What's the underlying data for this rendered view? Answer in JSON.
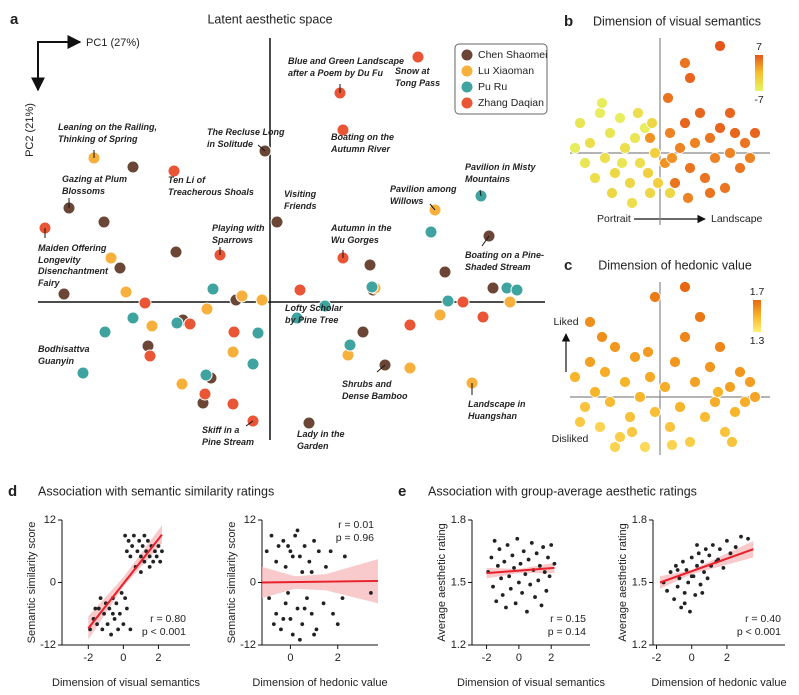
{
  "chart_data": [
    {
      "type": "scatter",
      "panel": "a",
      "title": "Latent aesthetic space",
      "xlabel": "PC1 (27%)",
      "ylabel": "PC2 (21%)",
      "xlim": [
        -250,
        275
      ],
      "ylim": [
        -150,
        275
      ],
      "legend": "upper right",
      "series": [
        {
          "name": "Chen Shaomei",
          "color": "#6b4636",
          "x": [
            -137,
            -201,
            -166,
            -150,
            -94,
            -206,
            -122,
            -59,
            -67,
            -34,
            -5,
            7,
            100,
            103,
            93,
            175,
            219,
            223,
            115,
            39,
            -87
          ],
          "y": [
            135,
            94,
            80,
            34,
            50,
            8,
            -44,
            -76,
            -101,
            2,
            151,
            80,
            37,
            12,
            -30,
            30,
            66,
            14,
            -63,
            -121,
            -18
          ],
          "labels": [
            null,
            "Gazing at Plum Blossoms",
            null,
            null,
            null,
            "Disenchantment Fairy",
            null,
            null,
            null,
            null,
            "The Recluse Long in Solitude",
            "Visiting Friends",
            null,
            null,
            null,
            null,
            "Boating on a Pine-Shaded Stream",
            null,
            "Shrubs and Dense Bamboo",
            "Lady in the Garden",
            null
          ]
        },
        {
          "name": "Lu Xiaoman",
          "color": "#f7b03c",
          "x": [
            -176,
            -159,
            -144,
            -63,
            -88,
            -37,
            -28,
            -118,
            78,
            105,
            165,
            170,
            140,
            240,
            202,
            -8
          ],
          "y": [
            144,
            44,
            10,
            -7,
            -82,
            -50,
            6,
            -24,
            -53,
            14,
            92,
            -13,
            -66,
            0,
            -81,
            2
          ],
          "labels": [
            "Leaning on the Railing, Thinking of Spring",
            null,
            null,
            null,
            null,
            null,
            null,
            null,
            null,
            null,
            "Pavilion among Willows",
            null,
            null,
            null,
            "Landscape in Huangshan",
            null
          ]
        },
        {
          "name": "Pu Ru",
          "color": "#3fa3a0",
          "x": [
            -165,
            -137,
            -187,
            -57,
            -93,
            -64,
            -17,
            -12,
            27,
            55,
            80,
            161,
            211,
            237,
            247,
            178,
            102
          ],
          "y": [
            -30,
            -16,
            -71,
            13,
            -21,
            -73,
            -62,
            -31,
            -16,
            -4,
            -43,
            70,
            106,
            14,
            12,
            1,
            15
          ],
          "labels": [
            null,
            null,
            "Bodhisattva Guanyin",
            null,
            null,
            null,
            null,
            null,
            "Lofty Scholar by Pine Tree",
            null,
            null,
            null,
            "Pavilion in Misty Mountains",
            null,
            null,
            null,
            null
          ]
        },
        {
          "name": "Zhang Daqian",
          "color": "#ea5536",
          "x": [
            148,
            70,
            73,
            -96,
            -225,
            -50,
            73,
            -17,
            -125,
            -80,
            -36,
            -120,
            -65,
            -37,
            30,
            193,
            213,
            140
          ],
          "y": [
            245,
            209,
            172,
            131,
            74,
            47,
            44,
            -119,
            -1,
            -22,
            -30,
            -54,
            -92,
            -102,
            12,
            0,
            -15,
            -23
          ],
          "labels": [
            "Snow at Tong Pass",
            "Blue and Green Landscape after a Poem by Du Fu",
            "Boating on the Autumn River",
            "Ten Li of Treacherous Shoals",
            "Maiden Offering Longevity",
            "Playing with Sparrows",
            "Autumn in the Wu Gorges",
            "Skiff in a Pine Stream",
            null,
            null,
            null,
            null,
            null,
            null,
            null,
            null,
            null,
            null
          ]
        }
      ]
    },
    {
      "type": "scatter",
      "panel": "b",
      "title": "Dimension of visual semantics",
      "xlabel_left": "Portrait",
      "xlabel_right": "Landscape",
      "xlim": [
        -95,
        110
      ],
      "ylim": [
        -60,
        115
      ],
      "x": [
        -80,
        -70,
        -60,
        -55,
        -50,
        -45,
        -40,
        -35,
        -30,
        -25,
        -20,
        -15,
        -10,
        -5,
        -65,
        -75,
        -48,
        -28,
        -12,
        -38,
        -58,
        -22,
        -8,
        -85,
        -2,
        -10,
        5,
        10,
        15,
        20,
        25,
        30,
        35,
        40,
        45,
        50,
        55,
        60,
        65,
        70,
        75,
        80,
        85,
        90,
        95,
        30,
        25,
        60,
        28,
        50,
        12,
        8,
        70,
        10
      ],
      "y": [
        30,
        10,
        40,
        -5,
        20,
        -20,
        35,
        5,
        -30,
        15,
        -10,
        25,
        -40,
        0,
        -25,
        -10,
        -40,
        -50,
        -20,
        -10,
        50,
        40,
        30,
        5,
        -30,
        15,
        -10,
        20,
        -30,
        5,
        30,
        -15,
        10,
        40,
        -25,
        15,
        -5,
        25,
        -35,
        0,
        20,
        -15,
        10,
        -5,
        20,
        75,
        90,
        107,
        -45,
        -40,
        -5,
        55,
        40,
        -40
      ],
      "color_values": [
        -5,
        -4,
        -6,
        -4,
        -5,
        -3,
        -6,
        -4,
        -3,
        -5,
        -4,
        -6,
        -3,
        -2,
        -4,
        -5,
        -3,
        -4,
        -2,
        -5,
        -6,
        -4,
        -3,
        -6,
        -2,
        3,
        3,
        4,
        5,
        4,
        6,
        5,
        4,
        6,
        5,
        5,
        4,
        6,
        5,
        4,
        6,
        5,
        5,
        4,
        6,
        6,
        5,
        7,
        4,
        5,
        3,
        5,
        6,
        -3
      ],
      "colormap": [
        "#e4f565",
        "#f6c02e",
        "#e6561a"
      ],
      "clim": [
        -7,
        7
      ],
      "cticks": [
        7,
        -7
      ]
    },
    {
      "type": "scatter",
      "panel": "c",
      "title": "Dimension of hedonic value",
      "ylabel_top": "Liked",
      "ylabel_bottom": "Disliked",
      "xlim": [
        -95,
        110
      ],
      "ylim": [
        -60,
        115
      ],
      "x": [
        -85,
        -75,
        -70,
        -65,
        -60,
        -55,
        -50,
        -45,
        -40,
        -35,
        -30,
        -25,
        -20,
        -15,
        -10,
        -5,
        -80,
        -58,
        -28,
        -12,
        5,
        10,
        15,
        20,
        25,
        30,
        35,
        40,
        45,
        50,
        55,
        60,
        65,
        70,
        75,
        80,
        85,
        90,
        95,
        25,
        -70,
        -5,
        58,
        12,
        -45,
        72
      ],
      "y": [
        20,
        -10,
        35,
        5,
        -30,
        25,
        -5,
        50,
        -40,
        15,
        -20,
        40,
        0,
        -50,
        20,
        -15,
        -25,
        60,
        -35,
        45,
        10,
        -30,
        35,
        -10,
        60,
        -45,
        15,
        80,
        -20,
        30,
        -5,
        50,
        -35,
        10,
        -15,
        25,
        -5,
        15,
        0,
        110,
        75,
        100,
        5,
        -48,
        -50,
        -45
      ],
      "color_values": [
        1.5,
        1.45,
        1.55,
        1.5,
        1.4,
        1.52,
        1.48,
        1.58,
        1.42,
        1.5,
        1.46,
        1.56,
        1.5,
        1.38,
        1.53,
        1.47,
        1.43,
        1.6,
        1.44,
        1.57,
        1.52,
        1.45,
        1.58,
        1.5,
        1.62,
        1.42,
        1.55,
        1.66,
        1.48,
        1.58,
        1.52,
        1.62,
        1.45,
        1.55,
        1.5,
        1.58,
        1.52,
        1.56,
        1.54,
        1.7,
        1.6,
        1.65,
        1.5,
        1.4,
        1.4,
        1.45
      ],
      "colormap": [
        "#fff176",
        "#f7b52a",
        "#e8670f"
      ],
      "clim": [
        1.3,
        1.7
      ],
      "cticks": [
        1.7,
        1.3
      ]
    },
    {
      "type": "scatter",
      "panel": "d",
      "title": "Association with semantic similarity ratings",
      "xlabel": "Dimension of visual semantics",
      "ylabel": "Semantic similarity score",
      "xlim": [
        -3.5,
        3.8
      ],
      "ylim": [
        -12,
        12
      ],
      "xticks": [
        -2,
        0,
        2
      ],
      "yticks": [
        -12,
        0,
        12
      ],
      "color": "#222222",
      "x": [
        0.1,
        0.3,
        0.5,
        0.6,
        0.8,
        0.9,
        1.0,
        1.1,
        1.2,
        1.3,
        1.4,
        1.5,
        1.6,
        1.7,
        1.8,
        1.9,
        2.0,
        2.1,
        0.4,
        0.7,
        1.0,
        1.5,
        2.2,
        1.2,
        0.2,
        -1.9,
        -1.7,
        -1.5,
        -1.4,
        -1.2,
        -1.1,
        -1.0,
        -0.9,
        -0.8,
        -0.7,
        -0.6,
        -0.5,
        -0.4,
        -0.3,
        -0.2,
        -0.1,
        0,
        0.2,
        0.4,
        -1.3,
        -0.6,
        0.1,
        -1.6
      ],
      "y": [
        9,
        8,
        7,
        9,
        6,
        8,
        5,
        7,
        4,
        6,
        8,
        5,
        7,
        4,
        6,
        5,
        7,
        4,
        5,
        3,
        2,
        3,
        6,
        9,
        6,
        -9,
        -7,
        -8,
        -5,
        -9,
        -6,
        -4,
        -8,
        -5,
        -10,
        -3,
        -7,
        -4,
        -9,
        -6,
        -2,
        -8,
        -5,
        -9,
        -3,
        -6,
        -3,
        -5
      ],
      "fit": {
        "x": [
          -2,
          2.2
        ],
        "y": [
          -8.8,
          9.2
        ],
        "color": "#e8202a"
      },
      "ci": {
        "x": [
          -2,
          0,
          2.2
        ],
        "lower": [
          -11,
          -0.8,
          7.5
        ],
        "upper": [
          -6.5,
          1,
          11
        ],
        "color": "#f5b8bb"
      },
      "annotations": [
        "r = 0.80",
        "p < 0.001"
      ],
      "annotation_corner": "lower right"
    },
    {
      "type": "scatter",
      "xlabel": "Dimension of hedonic value",
      "ylabel": "Semantic similarity score",
      "xlim": [
        -1.2,
        3.7
      ],
      "ylim": [
        -12,
        12
      ],
      "xticks": [
        0,
        2
      ],
      "yticks": [
        -12,
        0,
        12
      ],
      "color": "#222222",
      "x": [
        -0.8,
        -0.5,
        -0.3,
        0,
        0.2,
        0.4,
        0.6,
        0.8,
        1.0,
        1.2,
        -0.6,
        -0.2,
        0.1,
        0.5,
        1.5,
        2.3,
        -1.0,
        0.3,
        0.9,
        -0.1,
        1.7,
        -0.9,
        -0.6,
        -0.4,
        -0.2,
        0,
        0.1,
        0.3,
        0.5,
        0.7,
        0.9,
        1.1,
        1.4,
        -0.7,
        -0.1,
        0.4,
        1.8,
        2.2,
        3.4,
        0.6,
        -0.3,
        1.0,
        2.0
      ],
      "y": [
        9,
        7,
        8,
        6,
        9,
        5,
        7,
        4,
        8,
        6,
        4,
        3,
        5,
        2,
        3,
        5,
        6,
        10,
        2,
        7,
        6,
        -3,
        -6,
        -9,
        -4,
        -7,
        -10,
        -5,
        -8,
        -3,
        -6,
        -9,
        -4,
        -8,
        -2,
        -11,
        -6,
        -3,
        -2,
        -5,
        -7,
        -10,
        -8
      ],
      "fit": {
        "x": [
          -1.2,
          3.7
        ],
        "y": [
          0,
          0.3
        ],
        "color": "#e8202a"
      },
      "ci": {
        "x": [
          -1.2,
          0.2,
          1.5,
          3.7
        ],
        "lower": [
          -3,
          -1.2,
          -1.5,
          -4
        ],
        "upper": [
          3,
          1.2,
          1.6,
          4.5
        ],
        "color": "#f5b8bb"
      },
      "annotations": [
        "r = 0.01",
        "p = 0.96"
      ],
      "annotation_corner": "upper right"
    },
    {
      "type": "scatter",
      "panel": "e",
      "title": "Association with group-average aesthetic ratings",
      "xlabel": "Dimension of visual semantics",
      "ylabel": "Average aesthetic rating",
      "xlim": [
        -2.9,
        4.4
      ],
      "ylim": [
        1.2,
        1.8
      ],
      "xticks": [
        -2,
        0,
        2
      ],
      "yticks": [
        1.2,
        1.5,
        1.8
      ],
      "color": "#222222",
      "x": [
        -1.9,
        -1.7,
        -1.6,
        -1.5,
        -1.4,
        -1.3,
        -1.2,
        -1.1,
        -1.0,
        -0.9,
        -0.8,
        -0.7,
        -0.6,
        -0.5,
        -0.4,
        -0.3,
        -0.2,
        -0.1,
        0,
        0.1,
        0.2,
        0.3,
        0.4,
        0.5,
        0.6,
        0.7,
        0.8,
        0.9,
        1.0,
        1.1,
        1.2,
        1.3,
        1.4,
        1.5,
        1.6,
        1.7,
        1.8,
        1.9,
        2.0,
        2.2
      ],
      "y": [
        1.55,
        1.62,
        1.48,
        1.7,
        1.41,
        1.58,
        1.66,
        1.52,
        1.44,
        1.6,
        1.38,
        1.68,
        1.53,
        1.47,
        1.63,
        1.57,
        1.4,
        1.71,
        1.5,
        1.59,
        1.45,
        1.65,
        1.54,
        1.36,
        1.61,
        1.49,
        1.69,
        1.56,
        1.43,
        1.64,
        1.51,
        1.58,
        1.39,
        1.67,
        1.55,
        1.46,
        1.62,
        1.53,
        1.68,
        1.59
      ],
      "fit": {
        "x": [
          -2,
          2.2
        ],
        "y": [
          1.545,
          1.57
        ],
        "color": "#e8202a"
      },
      "ci": {
        "x": [
          -2,
          0,
          2.2
        ],
        "lower": [
          1.52,
          1.545,
          1.545
        ],
        "upper": [
          1.57,
          1.565,
          1.595
        ],
        "color": "#f5b8bb"
      },
      "annotations": [
        "r = 0.15",
        "p = 0.14"
      ],
      "annotation_corner": "lower right"
    },
    {
      "type": "scatter",
      "xlabel": "Dimension of hedonic value",
      "ylabel": "Average aesthetic rating",
      "xlim": [
        -2.2,
        5.3
      ],
      "ylim": [
        1.2,
        1.8
      ],
      "xticks": [
        -2,
        0,
        2
      ],
      "yticks": [
        1.2,
        1.5,
        1.8
      ],
      "color": "#222222",
      "x": [
        -1.6,
        -1.4,
        -1.2,
        -1.0,
        -0.9,
        -0.8,
        -0.7,
        -0.6,
        -0.5,
        -0.4,
        -0.3,
        -0.2,
        -0.1,
        0,
        0.1,
        0.2,
        0.3,
        0.4,
        0.5,
        0.6,
        0.7,
        0.8,
        0.9,
        1.0,
        1.1,
        1.2,
        1.4,
        1.6,
        1.8,
        2.0,
        2.2,
        2.5,
        2.8,
        3.2,
        -0.4,
        0,
        0.3,
        -0.8,
        0.6,
        1.5
      ],
      "y": [
        1.5,
        1.46,
        1.55,
        1.42,
        1.58,
        1.48,
        1.52,
        1.38,
        1.6,
        1.45,
        1.56,
        1.5,
        1.36,
        1.62,
        1.53,
        1.44,
        1.58,
        1.64,
        1.49,
        1.6,
        1.55,
        1.66,
        1.52,
        1.63,
        1.58,
        1.68,
        1.6,
        1.66,
        1.57,
        1.7,
        1.64,
        1.67,
        1.72,
        1.71,
        1.4,
        1.53,
        1.68,
        1.56,
        1.45,
        1.61
      ],
      "fit": {
        "x": [
          -1.8,
          3.5
        ],
        "y": [
          1.5,
          1.66
        ],
        "color": "#e8202a"
      },
      "ci": {
        "x": [
          -1.8,
          0,
          3.5
        ],
        "lower": [
          1.47,
          1.54,
          1.62
        ],
        "upper": [
          1.53,
          1.56,
          1.7
        ],
        "color": "#f5b8bb"
      },
      "annotations": [
        "r = 0.40",
        "p < 0.001"
      ],
      "annotation_corner": "lower right"
    }
  ]
}
